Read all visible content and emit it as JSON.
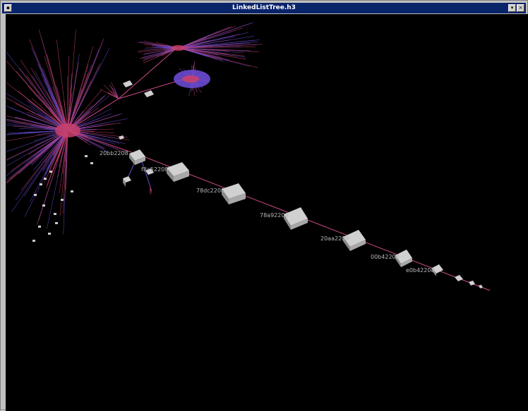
{
  "window": {
    "title": "LinkedListTree.h3"
  },
  "nodes": [
    {
      "label": "20bb2208"
    },
    {
      "label": "f8a52208"
    },
    {
      "label": "78dc2208"
    },
    {
      "label": "78a92208"
    },
    {
      "label": "20aa2208"
    },
    {
      "label": "00b42208"
    },
    {
      "label": "e0b42208"
    }
  ],
  "colors": {
    "edge_main": "#d04a8a",
    "fan": "#6a4ad0",
    "node_fill": "#c8c8c8",
    "background": "#000000"
  }
}
